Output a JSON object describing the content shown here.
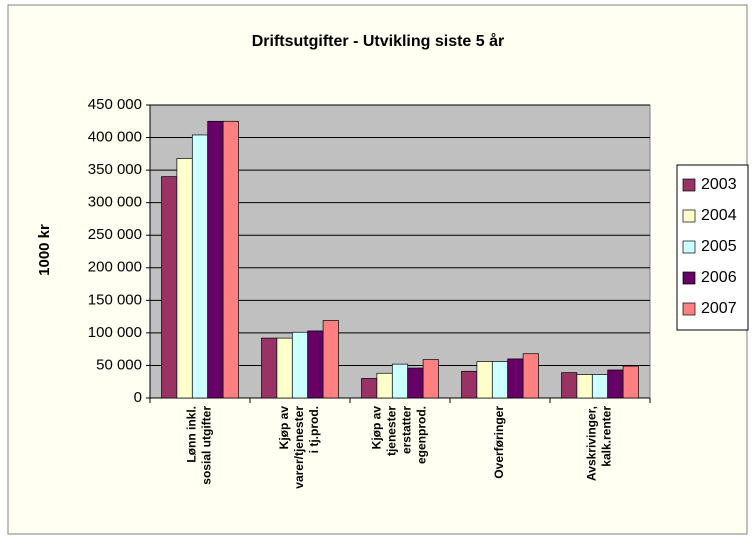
{
  "chart_data": {
    "type": "bar",
    "title": "Driftsutgifter - Utvikling siste 5 år",
    "y_label": "1000 kr",
    "categories": [
      [
        "Lønn inkl.",
        "sosial utgifter"
      ],
      [
        "Kjøp av",
        "varer/tjenester",
        "i tj.prod."
      ],
      [
        "Kjøp av",
        "tjenester",
        "erstatter",
        "egenprod."
      ],
      [
        "Overføringer"
      ],
      [
        "Avskrivinger,",
        "kalk.renter"
      ]
    ],
    "series": [
      {
        "name": "2003",
        "color": "#993366",
        "values": [
          340000,
          92000,
          30000,
          41000,
          39000
        ]
      },
      {
        "name": "2004",
        "color": "#ffffcc",
        "values": [
          368000,
          92000,
          38000,
          56000,
          36000
        ]
      },
      {
        "name": "2005",
        "color": "#ccffff",
        "values": [
          404000,
          101000,
          52000,
          56000,
          36000
        ]
      },
      {
        "name": "2006",
        "color": "#660066",
        "values": [
          425000,
          103000,
          46000,
          60000,
          43000
        ]
      },
      {
        "name": "2007",
        "color": "#ff8080",
        "values": [
          425000,
          119000,
          59000,
          68000,
          49000
        ]
      }
    ],
    "ylim": [
      0,
      450000
    ],
    "yticks": [
      0,
      {
        "value": 50000,
        "label": "50 000"
      },
      {
        "value": 100000,
        "label": "100 000"
      },
      {
        "value": 150000,
        "label": "150 000"
      },
      {
        "value": 200000,
        "label": "200 000"
      },
      {
        "value": 250000,
        "label": "250 000"
      },
      {
        "value": 300000,
        "label": "300 000"
      },
      {
        "value": 350000,
        "label": "350 000"
      },
      {
        "value": 400000,
        "label": "400 000"
      },
      {
        "value": 450000,
        "label": "450 000"
      }
    ],
    "grid": true,
    "legend": "right"
  }
}
